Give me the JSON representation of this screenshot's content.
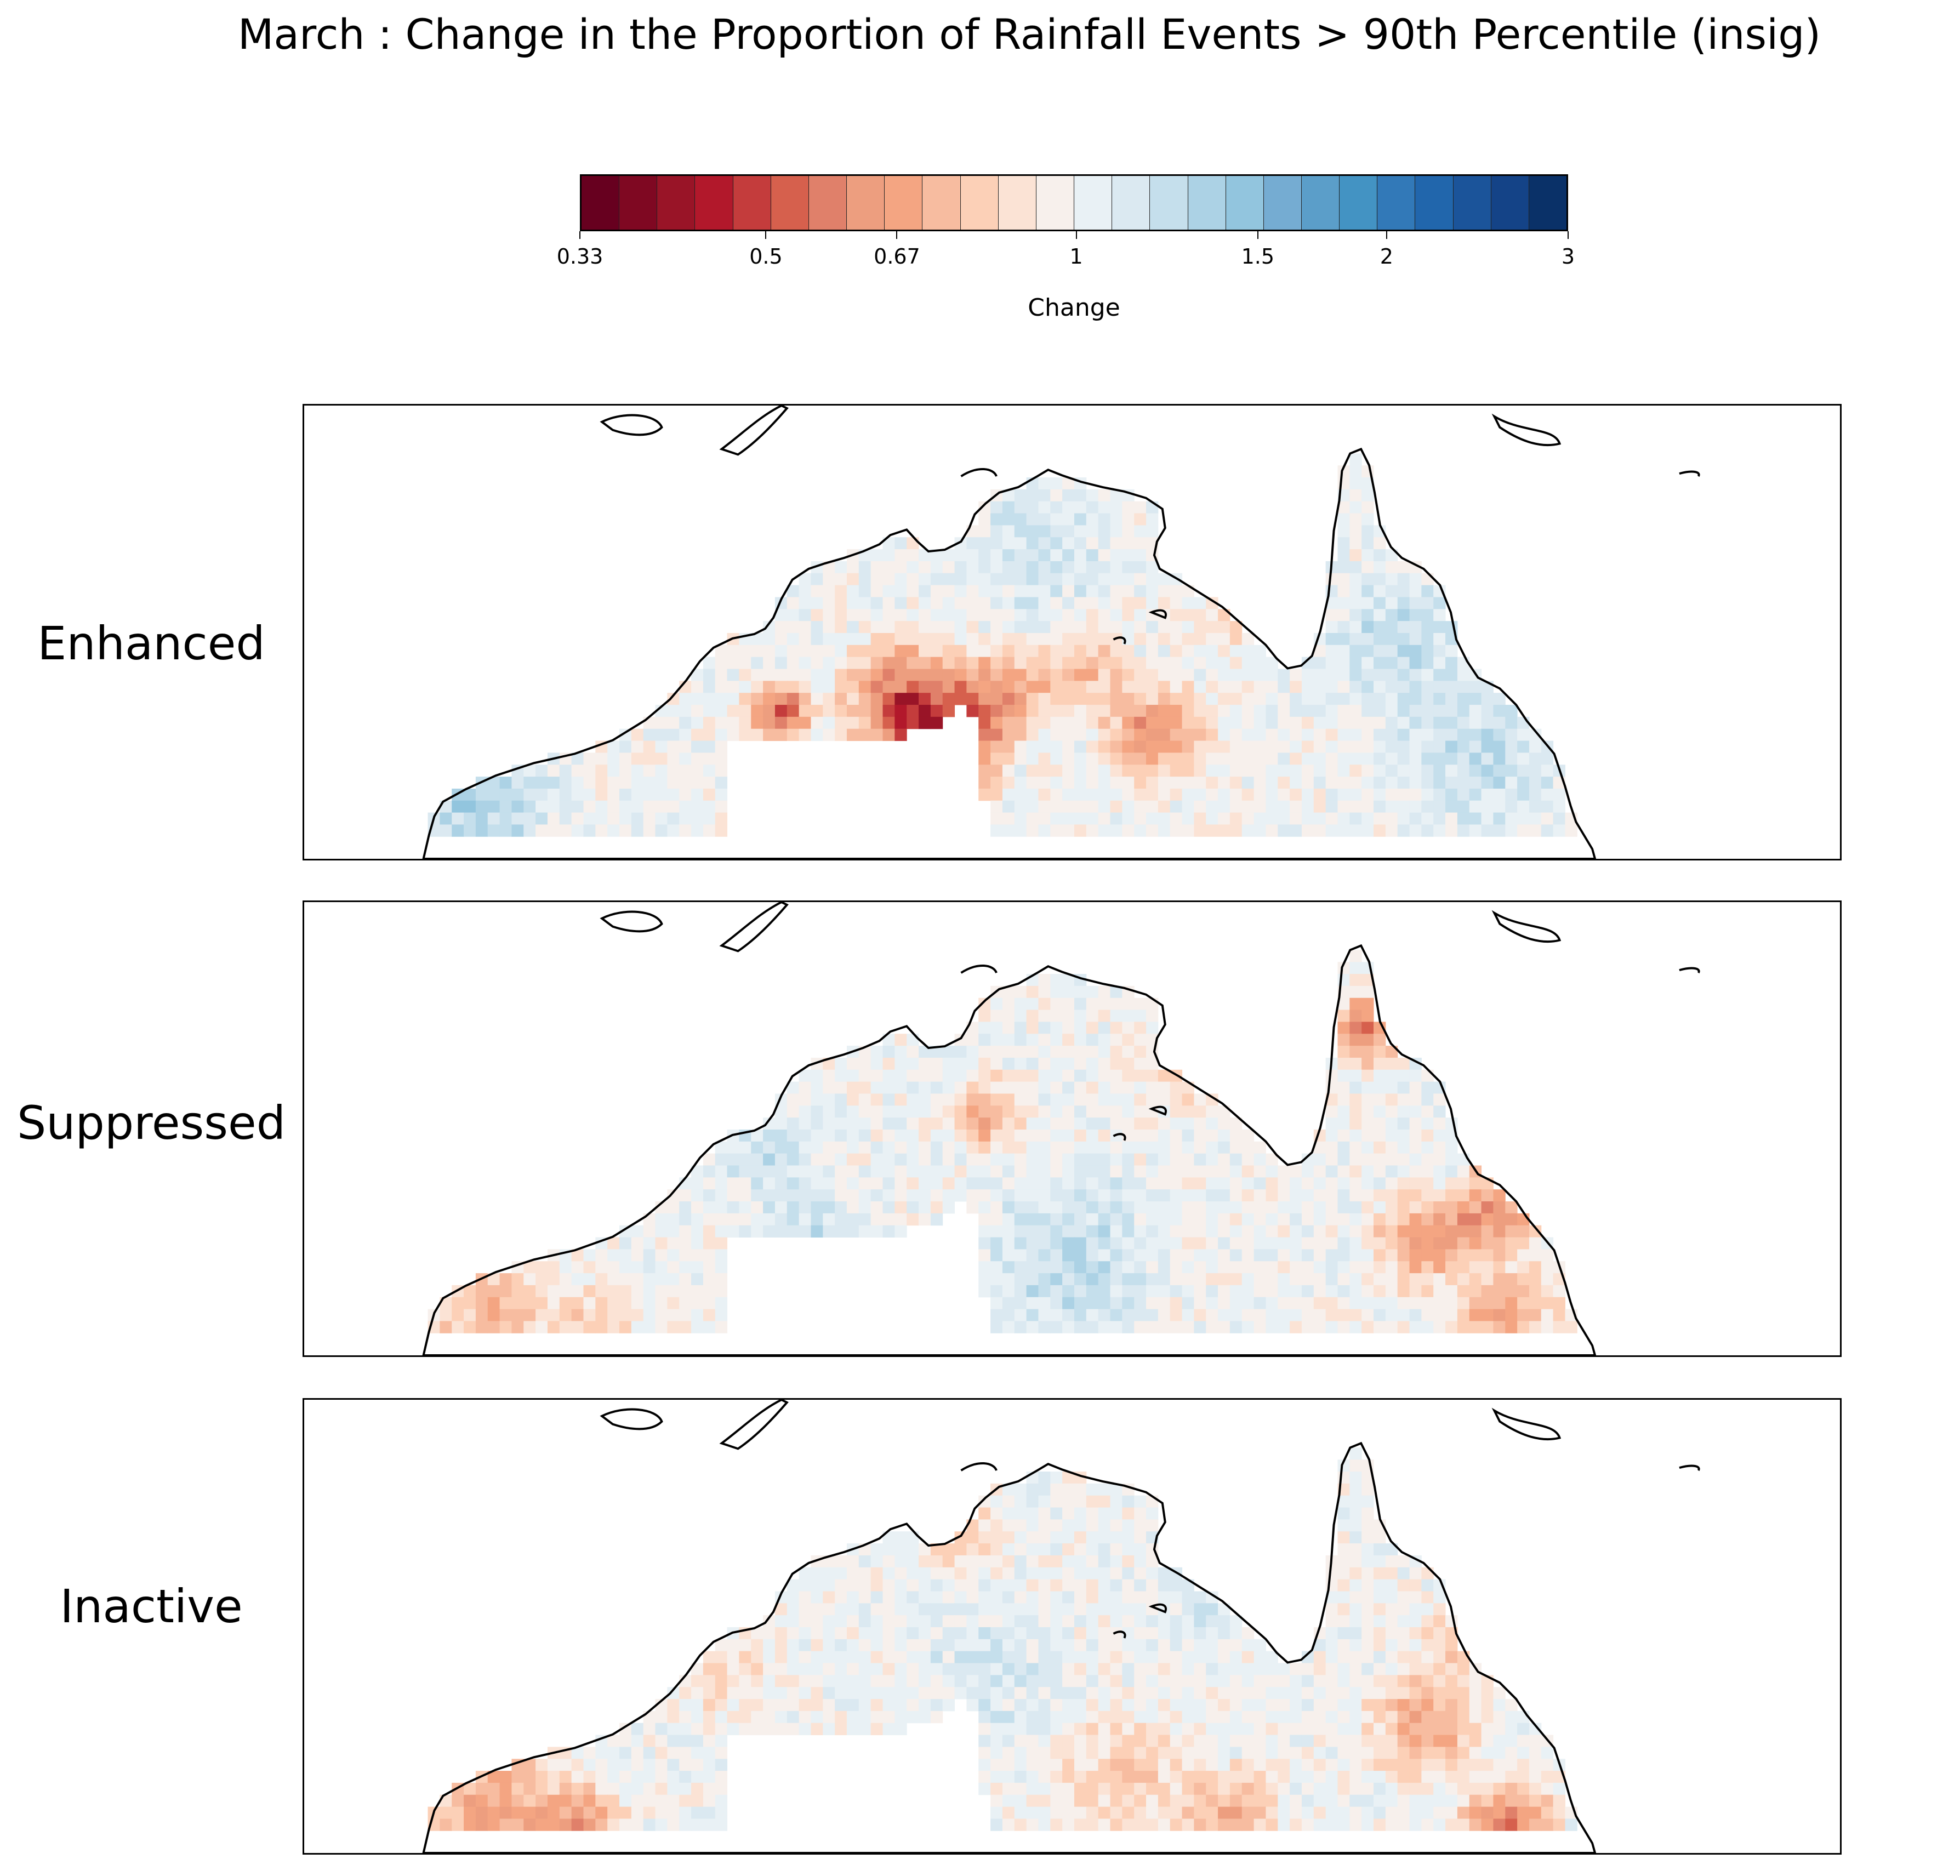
{
  "title": "March : Change in the Proportion of Rainfall Events > 90th Percentile (insig)",
  "colorbar": {
    "label": "Change",
    "ticks": [
      "0.33",
      "0.5",
      "0.67",
      "1",
      "1.5",
      "2",
      "3"
    ],
    "colors": [
      "#67001f",
      "#7f0822",
      "#991427",
      "#b2182b",
      "#c43c3c",
      "#d6604d",
      "#e0806a",
      "#ed9e7f",
      "#f4a582",
      "#f7bca0",
      "#fcd0b7",
      "#fbe3d5",
      "#f7f0ec",
      "#e9f1f5",
      "#dbe9f1",
      "#c5dfec",
      "#acd2e5",
      "#92c5de",
      "#75acd2",
      "#5b9ec9",
      "#4393c3",
      "#3279b8",
      "#2166ac",
      "#1b549a",
      "#144387",
      "#0a3168"
    ]
  },
  "chart_data": {
    "type": "heatmap",
    "title": "March : Change in the Proportion of Rainfall Events > 90th Percentile (insig)",
    "colorbar_label": "Change",
    "colorbar_ticks": [
      0.33,
      0.5,
      0.67,
      1,
      1.5,
      2,
      3
    ],
    "colorbar_range": [
      0.33,
      3
    ],
    "panels": [
      {
        "name": "Enhanced",
        "dominant": "mostly near 1 to 1.5 over coastal north and Cape York; patches of 0.4-0.6 in central and south-central regions"
      },
      {
        "name": "Suppressed",
        "dominant": "mixed, mostly 0.7-1.3; reductions near 0.5 over Cape York and east, increases 1.2-1.5 in interior"
      },
      {
        "name": "Inactive",
        "dominant": "mostly 0.7-1.2; reductions near 0.5 in south-west and south-east"
      }
    ]
  },
  "panels": [
    {
      "label": "Enhanced"
    },
    {
      "label": "Suppressed"
    },
    {
      "label": "Inactive"
    }
  ]
}
